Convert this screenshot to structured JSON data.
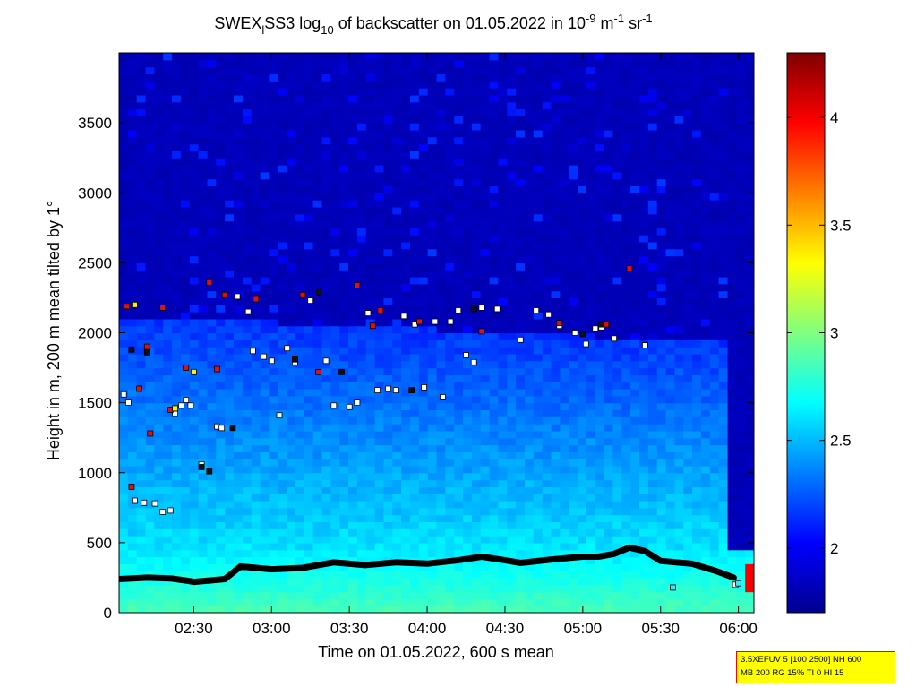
{
  "chart_data": {
    "type": "heatmap",
    "title": {
      "prefix": "SWEX",
      "sub1": "l",
      "mid": "SS3 log",
      "sub2": "10",
      "mid2": " of backscatter on 01.05.2022 in 10",
      "sup1": "-9",
      "mid3": " m",
      "sup2": "-1",
      "mid4": " sr",
      "sup3": "-1"
    },
    "xlabel": "Time on 01.05.2022, 600 s mean",
    "ylabel": "Height in m, 200 m mean tilted by 1°",
    "x_ticks": [
      "02:30",
      "03:00",
      "03:30",
      "04:00",
      "04:30",
      "05:00",
      "05:30",
      "06:00"
    ],
    "x_tick_hours": [
      2.5,
      3.0,
      3.5,
      4.0,
      4.5,
      5.0,
      5.5,
      6.0
    ],
    "xlim_hours": [
      2.02,
      6.1
    ],
    "y_ticks": [
      "0",
      "500",
      "1000",
      "1500",
      "2000",
      "2500",
      "3000",
      "3500"
    ],
    "y_tick_values": [
      0,
      500,
      1000,
      1500,
      2000,
      2500,
      3000,
      3500
    ],
    "ylim": [
      0,
      4000
    ],
    "colorbar": {
      "ticks": [
        "2",
        "2.5",
        "3",
        "3.5",
        "4"
      ],
      "tick_values": [
        2,
        2.5,
        3,
        3.5,
        4
      ],
      "range": [
        1.7,
        4.3
      ],
      "colormap": "jet"
    },
    "field": {
      "surface_value": 2.85,
      "upper_value": 1.82,
      "boundary_layer_top_m": 2100,
      "boundary_layer_top_end_m": 1900,
      "high_value_patch": {
        "x_hours": [
          6.0,
          6.1
        ],
        "y_m": [
          150,
          330
        ],
        "value": 4.0
      }
    },
    "lowest_layer_line": {
      "color": "#000000",
      "x_hours": [
        2.02,
        2.2,
        2.35,
        2.45,
        2.5,
        2.6,
        2.7,
        2.8,
        3.0,
        3.2,
        3.4,
        3.6,
        3.8,
        4.0,
        4.2,
        4.35,
        4.5,
        4.6,
        4.8,
        5.0,
        5.1,
        5.2,
        5.3,
        5.4,
        5.5,
        5.6,
        5.7,
        5.85,
        5.97
      ],
      "y_m": [
        240,
        250,
        245,
        230,
        220,
        230,
        240,
        330,
        310,
        320,
        360,
        340,
        360,
        350,
        375,
        400,
        375,
        355,
        380,
        400,
        400,
        420,
        465,
        440,
        370,
        360,
        350,
        300,
        250
      ]
    },
    "layer_points": {
      "description_colors": [
        "#ffffff",
        "#e01010",
        "#101010",
        "#ffee00"
      ],
      "white": [
        [
          2.05,
          1560
        ],
        [
          2.08,
          1500
        ],
        [
          2.12,
          800
        ],
        [
          2.18,
          785
        ],
        [
          2.25,
          780
        ],
        [
          2.3,
          720
        ],
        [
          2.35,
          730
        ],
        [
          2.38,
          1420
        ],
        [
          2.42,
          1480
        ],
        [
          2.45,
          1520
        ],
        [
          2.48,
          1480
        ],
        [
          2.55,
          1060
        ],
        [
          2.65,
          1330
        ],
        [
          2.68,
          1320
        ],
        [
          2.78,
          2260
        ],
        [
          2.85,
          2150
        ],
        [
          2.88,
          1870
        ],
        [
          2.95,
          1830
        ],
        [
          3.0,
          1800
        ],
        [
          3.05,
          1410
        ],
        [
          3.1,
          1890
        ],
        [
          3.15,
          1790
        ],
        [
          3.25,
          2230
        ],
        [
          3.35,
          1800
        ],
        [
          3.4,
          1480
        ],
        [
          3.5,
          1470
        ],
        [
          3.55,
          1500
        ],
        [
          3.62,
          2140
        ],
        [
          3.68,
          1590
        ],
        [
          3.75,
          1600
        ],
        [
          3.8,
          1590
        ],
        [
          3.85,
          2120
        ],
        [
          3.92,
          2060
        ],
        [
          3.98,
          1610
        ],
        [
          4.05,
          2080
        ],
        [
          4.1,
          1540
        ],
        [
          4.15,
          2080
        ],
        [
          4.2,
          2160
        ],
        [
          4.25,
          1840
        ],
        [
          4.3,
          1790
        ],
        [
          4.35,
          2180
        ],
        [
          4.45,
          2170
        ],
        [
          4.6,
          1950
        ],
        [
          4.7,
          2160
        ],
        [
          4.78,
          2130
        ],
        [
          4.85,
          2050
        ],
        [
          4.95,
          2000
        ],
        [
          5.02,
          1920
        ],
        [
          5.08,
          2030
        ],
        [
          5.12,
          2040
        ],
        [
          5.2,
          1960
        ],
        [
          5.4,
          1910
        ],
        [
          5.98,
          200
        ]
      ],
      "red": [
        [
          2.07,
          2190
        ],
        [
          2.1,
          900
        ],
        [
          2.15,
          1600
        ],
        [
          2.2,
          1900
        ],
        [
          2.22,
          1280
        ],
        [
          2.3,
          2180
        ],
        [
          2.35,
          1450
        ],
        [
          2.45,
          1750
        ],
        [
          2.6,
          2360
        ],
        [
          2.65,
          1740
        ],
        [
          2.7,
          2270
        ],
        [
          2.9,
          2240
        ],
        [
          3.2,
          2270
        ],
        [
          3.3,
          1720
        ],
        [
          3.55,
          2340
        ],
        [
          3.65,
          2050
        ],
        [
          3.7,
          2160
        ],
        [
          3.95,
          2080
        ],
        [
          4.35,
          2010
        ],
        [
          4.85,
          2070
        ],
        [
          5.15,
          2060
        ],
        [
          5.3,
          2460
        ]
      ],
      "black": [
        [
          2.1,
          1880
        ],
        [
          2.2,
          1860
        ],
        [
          2.55,
          1040
        ],
        [
          2.6,
          1010
        ],
        [
          2.75,
          1320
        ],
        [
          3.15,
          1810
        ],
        [
          3.3,
          2290
        ],
        [
          3.45,
          1720
        ],
        [
          3.9,
          1590
        ],
        [
          4.3,
          2170
        ],
        [
          5.0,
          1990
        ],
        [
          5.12,
          2060
        ]
      ],
      "yellow": [
        [
          2.12,
          2200
        ],
        [
          2.5,
          1720
        ],
        [
          2.38,
          1460
        ]
      ],
      "cyan": [
        [
          5.58,
          180
        ],
        [
          6.0,
          210
        ]
      ]
    }
  },
  "info_box": {
    "line1": "3.5XEFUV 5 [100 2500] NH 600",
    "line2": "MB 200 RG 15% TI 0 HI 15"
  }
}
